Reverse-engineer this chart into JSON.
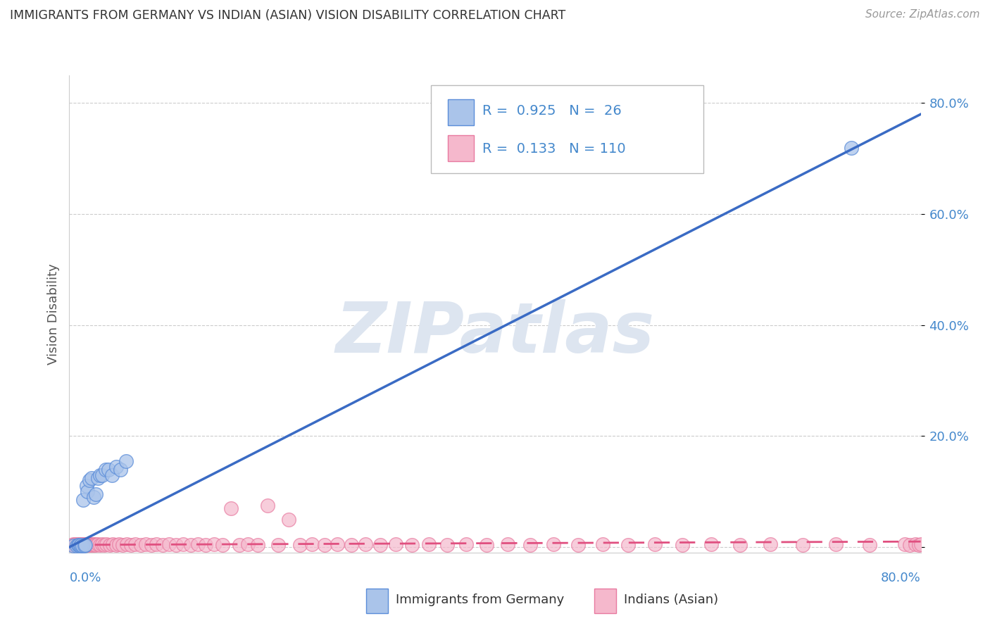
{
  "title": "IMMIGRANTS FROM GERMANY VS INDIAN (ASIAN) VISION DISABILITY CORRELATION CHART",
  "source": "Source: ZipAtlas.com",
  "ylabel": "Vision Disability",
  "xlim": [
    0.0,
    0.8
  ],
  "ylim": [
    -0.01,
    0.85
  ],
  "blue_R": 0.925,
  "blue_N": 26,
  "pink_R": 0.133,
  "pink_N": 110,
  "blue_color": "#aac4ea",
  "blue_edge_color": "#5b8dd9",
  "blue_line_color": "#3a6bc4",
  "pink_color": "#f5b8cc",
  "pink_edge_color": "#e87aa0",
  "pink_line_color": "#e05080",
  "watermark": "ZIPatlas",
  "watermark_color": "#dde5f0",
  "legend_label_blue": "Immigrants from Germany",
  "legend_label_pink": "Indians (Asian)",
  "blue_line_x": [
    0.0,
    0.8
  ],
  "blue_line_y": [
    0.0,
    0.78
  ],
  "pink_line_x": [
    0.0,
    0.8
  ],
  "pink_line_y": [
    0.004,
    0.01
  ],
  "ytick_vals": [
    0.0,
    0.2,
    0.4,
    0.6,
    0.8
  ],
  "ytick_labels": [
    "",
    "20.0%",
    "40.0%",
    "60.0%",
    "80.0%"
  ],
  "blue_scatter_x": [
    0.004,
    0.007,
    0.008,
    0.009,
    0.01,
    0.011,
    0.012,
    0.013,
    0.014,
    0.015,
    0.016,
    0.017,
    0.019,
    0.021,
    0.023,
    0.025,
    0.027,
    0.029,
    0.031,
    0.034,
    0.037,
    0.04,
    0.044,
    0.048,
    0.053,
    0.735
  ],
  "blue_scatter_y": [
    0.003,
    0.003,
    0.004,
    0.004,
    0.003,
    0.004,
    0.003,
    0.085,
    0.003,
    0.004,
    0.11,
    0.1,
    0.12,
    0.125,
    0.09,
    0.095,
    0.125,
    0.13,
    0.13,
    0.14,
    0.14,
    0.13,
    0.145,
    0.14,
    0.155,
    0.72
  ],
  "pink_scatter_x": [
    0.003,
    0.004,
    0.005,
    0.006,
    0.007,
    0.008,
    0.009,
    0.01,
    0.011,
    0.012,
    0.013,
    0.014,
    0.015,
    0.016,
    0.017,
    0.018,
    0.019,
    0.02,
    0.021,
    0.022,
    0.023,
    0.024,
    0.025,
    0.027,
    0.029,
    0.031,
    0.033,
    0.035,
    0.038,
    0.041,
    0.044,
    0.047,
    0.05,
    0.054,
    0.058,
    0.062,
    0.067,
    0.072,
    0.077,
    0.082,
    0.088,
    0.094,
    0.1,
    0.107,
    0.114,
    0.121,
    0.128,
    0.136,
    0.144,
    0.152,
    0.16,
    0.168,
    0.177,
    0.186,
    0.196,
    0.206,
    0.217,
    0.228,
    0.24,
    0.252,
    0.265,
    0.278,
    0.292,
    0.307,
    0.322,
    0.338,
    0.355,
    0.373,
    0.392,
    0.412,
    0.433,
    0.455,
    0.478,
    0.501,
    0.525,
    0.55,
    0.576,
    0.603,
    0.63,
    0.659,
    0.689,
    0.72,
    0.752,
    0.785,
    0.79,
    0.795,
    0.798,
    0.8
  ],
  "pink_scatter_y": [
    0.004,
    0.005,
    0.004,
    0.005,
    0.004,
    0.005,
    0.004,
    0.005,
    0.004,
    0.005,
    0.004,
    0.005,
    0.004,
    0.005,
    0.004,
    0.005,
    0.004,
    0.005,
    0.004,
    0.005,
    0.004,
    0.005,
    0.004,
    0.005,
    0.004,
    0.005,
    0.004,
    0.005,
    0.004,
    0.005,
    0.004,
    0.005,
    0.004,
    0.005,
    0.004,
    0.005,
    0.004,
    0.005,
    0.004,
    0.005,
    0.004,
    0.005,
    0.004,
    0.005,
    0.004,
    0.005,
    0.004,
    0.005,
    0.004,
    0.07,
    0.004,
    0.005,
    0.004,
    0.075,
    0.004,
    0.05,
    0.004,
    0.005,
    0.004,
    0.005,
    0.004,
    0.005,
    0.004,
    0.005,
    0.004,
    0.005,
    0.004,
    0.005,
    0.004,
    0.005,
    0.004,
    0.005,
    0.004,
    0.005,
    0.004,
    0.005,
    0.004,
    0.005,
    0.004,
    0.005,
    0.004,
    0.005,
    0.004,
    0.005,
    0.004,
    0.005,
    0.004,
    0.005
  ]
}
